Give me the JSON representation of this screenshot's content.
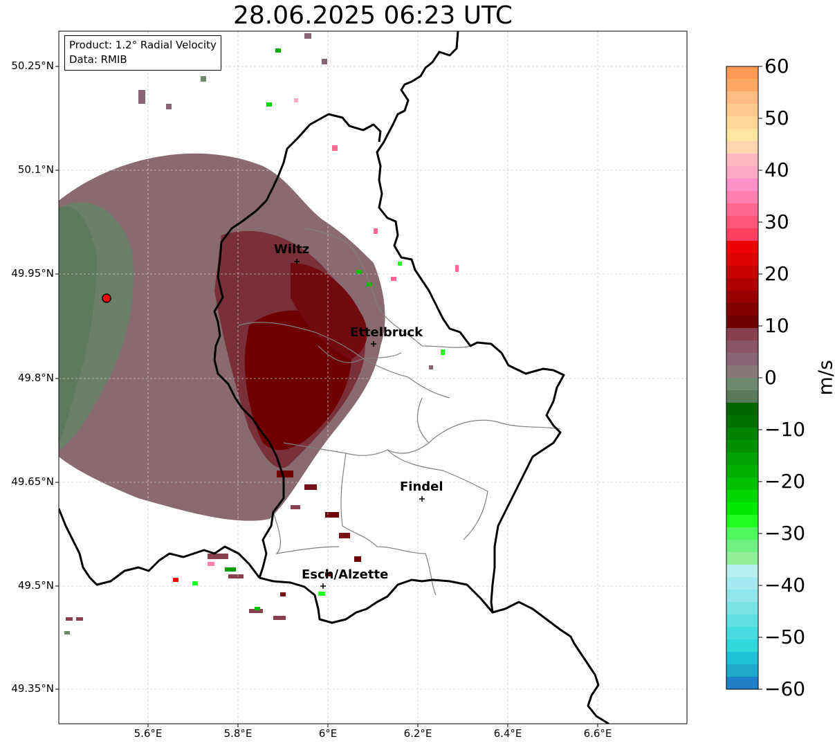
{
  "title": "28.06.2025 06:23 UTC",
  "info_box": {
    "product": "Product: 1.2° Radial Velocity",
    "data": "Data: RMIB"
  },
  "cities": [
    {
      "name": "Wiltz",
      "lon": 5.935,
      "lat": 49.966
    },
    {
      "name": "Ettelbruck",
      "lon": 6.101,
      "lat": 49.847
    },
    {
      "name": "Findel",
      "lon": 6.211,
      "lat": 49.626
    },
    {
      "name": "Esch/Alzette",
      "lon": 5.986,
      "lat": 49.499
    }
  ],
  "radar_site": {
    "lon": 5.505,
    "lat": 49.914
  },
  "axes": {
    "lon_range": [
      5.4,
      6.8
    ],
    "lat_range": [
      49.3,
      50.3
    ],
    "lat_ticks": [
      "49.35°N",
      "49.5°N",
      "49.65°N",
      "49.8°N",
      "49.95°N",
      "50.1°N",
      "50.25°N"
    ],
    "lon_ticks": [
      "5.6°E",
      "5.8°E",
      "6°E",
      "6.2°E",
      "6.4°E",
      "6.6°E"
    ],
    "grid": "dashed light gray"
  },
  "colorbar": {
    "unit": "m/s",
    "vmin": -60,
    "vmax": 60,
    "tick_labels": [
      "60",
      "50",
      "40",
      "30",
      "20",
      "10",
      "0",
      "−10",
      "−20",
      "−30",
      "−40",
      "−50",
      "−60"
    ],
    "colors_top_to_bottom": [
      "#ff9a55",
      "#ffa865",
      "#ffbb80",
      "#ffc98d",
      "#ffd898",
      "#ffe5a0",
      "#ffd5b0",
      "#ffb8c0",
      "#ffa8c8",
      "#ff90c8",
      "#ff80b0",
      "#ff6890",
      "#ff5578",
      "#ff4060",
      "#ee0000",
      "#dd0000",
      "#c80000",
      "#b00000",
      "#980000",
      "#820000",
      "#6e0000",
      "#884050",
      "#8a5565",
      "#8a6575",
      "#8a7878",
      "#6e8a6e",
      "#5a7a5a",
      "#006400",
      "#007000",
      "#008200",
      "#009000",
      "#00a000",
      "#00b000",
      "#00c000",
      "#00d800",
      "#00e800",
      "#20ff20",
      "#50f860",
      "#70f080",
      "#90ee98",
      "#b8eef0",
      "#a5eaee",
      "#90e6ea",
      "#78e2e6",
      "#60dfe2",
      "#48dce0",
      "#30d8dc",
      "#20c0d8",
      "#1ea8cc",
      "#1f80c8"
    ]
  }
}
